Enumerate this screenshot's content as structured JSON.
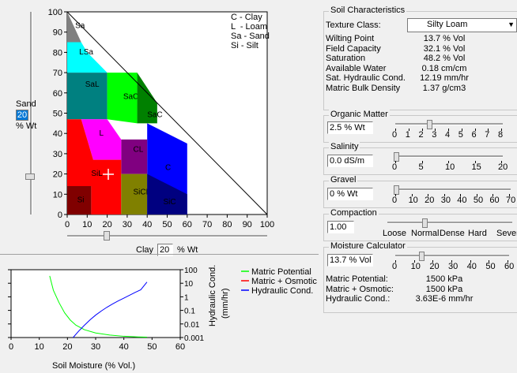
{
  "triangle": {
    "y_ticks": [
      "100",
      "90",
      "80",
      "70",
      "60",
      "50",
      "40",
      "30",
      "20",
      "10",
      "0"
    ],
    "x_ticks": [
      "0",
      "10",
      "20",
      "30",
      "40",
      "50",
      "60",
      "70",
      "80",
      "90",
      "100"
    ],
    "legend": [
      "C - Clay",
      "L  - Loam",
      "Sa - Sand",
      "Si - Silt"
    ],
    "regions": {
      "sa": {
        "label": "Sa",
        "color": "#808080"
      },
      "lsa": {
        "label": "LSa",
        "color": "#00ffff"
      },
      "sal": {
        "label": "SaL",
        "color": "#008080"
      },
      "sacl": {
        "label": "SaCL",
        "color": "#00ff00"
      },
      "sac": {
        "label": "SaC",
        "color": "#008000"
      },
      "l": {
        "label": "L",
        "color": "#ff00ff"
      },
      "cl": {
        "label": "CL",
        "color": "#800080"
      },
      "c": {
        "label": "C",
        "color": "#0000ff"
      },
      "sil": {
        "label": "SiL",
        "color": "#ff0000"
      },
      "sicl": {
        "label": "SiCL",
        "color": "#808000"
      },
      "sic": {
        "label": "SiC",
        "color": "#000080"
      },
      "si": {
        "label": "Si",
        "color": "#800000"
      }
    },
    "sand_label": "Sand",
    "sand_value": "20",
    "sand_unit": "% Wt",
    "clay_label": "Clay",
    "clay_value": "20",
    "clay_unit": "% Wt"
  },
  "soil": {
    "title": "Soil Characteristics",
    "texture_label": "Texture Class:",
    "texture_value": "Silty Loam",
    "rows": [
      {
        "k": "Wilting Point",
        "v": "13.7 % Vol"
      },
      {
        "k": "Field Capacity",
        "v": "32.1 % Vol"
      },
      {
        "k": "Saturation",
        "v": "48.2 % Vol"
      },
      {
        "k": "Available Water",
        "v": "0.18 cm/cm"
      },
      {
        "k": "Sat. Hydraulic Cond.",
        "v": "12.19 mm/hr"
      },
      {
        "k": "Matric Bulk Density",
        "v": "1.37 g/cm3"
      }
    ]
  },
  "organic": {
    "title": "Organic Matter",
    "value": "2.5",
    "unit": "% Wt",
    "scale": [
      "0",
      "1",
      "2",
      "3",
      "4",
      "5",
      "6",
      "7",
      "8"
    ],
    "level": 2.5
  },
  "salinity": {
    "title": "Salinity",
    "value": "0.0 dS/m",
    "scale": [
      "0",
      "5",
      "10",
      "15",
      "20"
    ],
    "level": 0
  },
  "gravel": {
    "title": "Gravel",
    "value": "0",
    "unit": "% Wt",
    "scale": [
      "0",
      "10",
      "20",
      "30",
      "40",
      "50",
      "60",
      "70"
    ],
    "level": 0
  },
  "compaction": {
    "title": "Compaction",
    "value": "1.00",
    "scale": [
      "Loose",
      "Normal",
      "Dense",
      "Hard",
      "Severe"
    ],
    "level": "Normal"
  },
  "moisture": {
    "title": "Moisture Calculator",
    "value": "13.7",
    "unit": "% Vol",
    "scale": [
      "0",
      "10",
      "20",
      "30",
      "40",
      "50",
      "60"
    ],
    "level": 13.7,
    "rows": [
      {
        "k": "Matric Potential:",
        "v": "1500 kPa"
      },
      {
        "k": "Matric + Osmotic:",
        "v": "1500 kPa"
      },
      {
        "k": "Hydraulic Cond.:",
        "v": "3.63E-6 mm/hr"
      }
    ]
  },
  "chart_data": {
    "type": "line",
    "xlabel": "Soil Moisture (% Vol.)",
    "x_ticks": [
      "0",
      "10",
      "20",
      "30",
      "40",
      "50",
      "60"
    ],
    "y2label": "Hydraulic Cond. (mm/hr)",
    "y2_ticks": [
      "100",
      "10",
      "1",
      "0.1",
      "0.01",
      "0.001"
    ],
    "xlim": [
      0,
      60
    ],
    "series": [
      {
        "name": "Matric Potential",
        "color": "#00ff00",
        "x": [
          13.7,
          15,
          17,
          19,
          21,
          23,
          26,
          30,
          35,
          40,
          45,
          48.2
        ],
        "y": [
          3.0,
          2.3,
          1.7,
          1.2,
          0.85,
          0.6,
          0.38,
          0.22,
          0.12,
          0.06,
          0.03,
          0.02
        ]
      },
      {
        "name": "Matric + Osmotic",
        "color": "#ff0000",
        "x": [],
        "y": []
      },
      {
        "name": "Hydraulic Cond.",
        "color": "#0000ff",
        "x": [
          22,
          24,
          26,
          28,
          30,
          32,
          34,
          36,
          38,
          40,
          42,
          44,
          46,
          48.2
        ],
        "y": [
          0.001,
          0.003,
          0.008,
          0.02,
          0.045,
          0.09,
          0.17,
          0.3,
          0.5,
          0.8,
          1.3,
          2.1,
          3.3,
          12.19
        ]
      }
    ]
  }
}
